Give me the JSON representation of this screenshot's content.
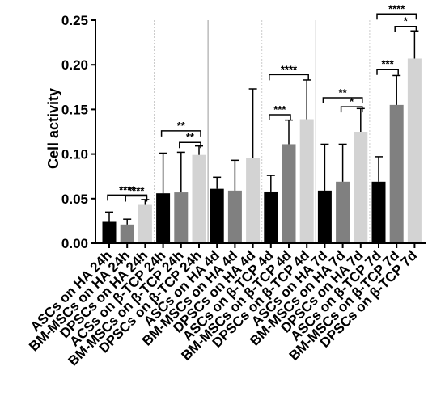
{
  "chart_data": {
    "type": "bar",
    "ylabel": "Cell activity",
    "ylim": [
      0,
      0.25
    ],
    "yticks": [
      "0.00",
      "0.05",
      "0.10",
      "0.15",
      "0.20",
      "0.25"
    ],
    "categories": [
      "ASCs on HA 24h",
      "BM-MSCs on HA 24h",
      "DPSCs on HA 24h",
      "ACSs on β-TCP 24h",
      "BM-MSCs on β-TCP 24h",
      "DPSCs on β-TCP 24h",
      "ASCs on HA 4d",
      "BM-MSCs on HA 4d",
      "DPSCs on HA 4d",
      "ASCs on β-TCP 4d",
      "BM-MSCs on β-TCP 4d",
      "DPSCs on β-TCP 4d",
      "ASCs on HA 7d",
      "BM-MSCs on HA 7d",
      "DPSCs on HA 7d",
      "ASCs on β-TCP 7d",
      "BM-MSCs on β-TCP 7d",
      "DPSCs on β-TCP 7d"
    ],
    "values": [
      0.024,
      0.021,
      0.043,
      0.056,
      0.057,
      0.099,
      0.061,
      0.059,
      0.096,
      0.058,
      0.111,
      0.139,
      0.059,
      0.069,
      0.125,
      0.069,
      0.155,
      0.207
    ],
    "errors": [
      0.011,
      0.006,
      0.006,
      0.045,
      0.045,
      0.01,
      0.013,
      0.034,
      0.077,
      0.018,
      0.027,
      0.044,
      0.052,
      0.042,
      0.026,
      0.028,
      0.033,
      0.031
    ],
    "colors": [
      "#000000",
      "#808080",
      "#d3d3d3"
    ],
    "significance": [
      {
        "from": 0,
        "to": 2,
        "level": 0.054,
        "label": "****"
      },
      {
        "from": 1,
        "to": 2,
        "level": 0.053,
        "label": "****"
      },
      {
        "from": 3,
        "to": 5,
        "level": 0.126,
        "label": "**"
      },
      {
        "from": 4,
        "to": 5,
        "level": 0.113,
        "label": "**"
      },
      {
        "from": 9,
        "to": 11,
        "level": 0.189,
        "label": "****"
      },
      {
        "from": 9,
        "to": 10,
        "level": 0.144,
        "label": "***"
      },
      {
        "from": 12,
        "to": 14,
        "level": 0.163,
        "label": "**"
      },
      {
        "from": 13,
        "to": 14,
        "level": 0.153,
        "label": "*"
      },
      {
        "from": 15,
        "to": 17,
        "level": 0.257,
        "label": "****"
      },
      {
        "from": 15,
        "to": 16,
        "level": 0.195,
        "label": "***"
      },
      {
        "from": 16,
        "to": 17,
        "level": 0.243,
        "label": "*"
      }
    ]
  }
}
